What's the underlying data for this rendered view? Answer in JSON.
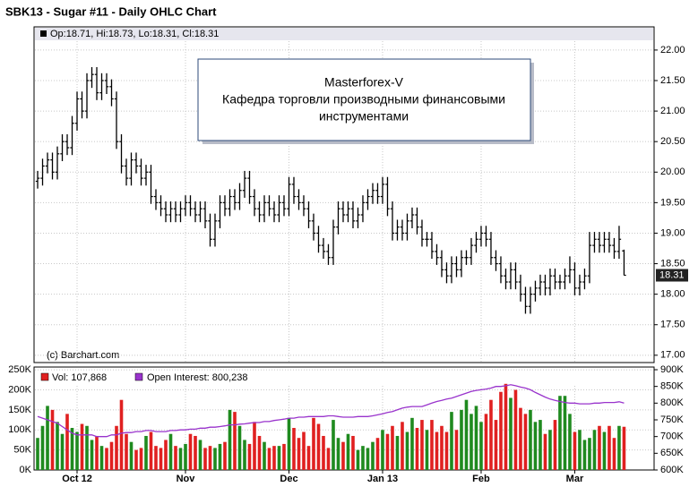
{
  "chart_data": [
    {
      "type": "ohlc",
      "title": "SBK13 - Sugar #11 - Daily OHLC Chart",
      "info": "Op:18.71, Hi:18.73, Lo:18.31, Cl:18.31",
      "annotation": [
        "Masterforex-V",
        "Кафедра торговли производными финансовыми",
        "инструментами"
      ],
      "source": "(c) Barchart.com",
      "color": "#000000",
      "grid": true,
      "xlim": [
        -0.73,
        125.1
      ],
      "ylim": [
        16.88,
        22.38
      ],
      "yticks": [
        {
          "value": 17,
          "label": "17.00"
        },
        {
          "value": 17.5,
          "label": "17.50"
        },
        {
          "value": 18,
          "label": "18.00"
        },
        {
          "value": 18.5,
          "label": "18.50"
        },
        {
          "value": 19,
          "label": "19.00"
        },
        {
          "value": 19.5,
          "label": "19.50"
        },
        {
          "value": 20,
          "label": "20.00"
        },
        {
          "value": 20.5,
          "label": "20.50"
        },
        {
          "value": 21,
          "label": "21.00"
        },
        {
          "value": 21.5,
          "label": "21.50"
        },
        {
          "value": 22,
          "label": "22.00"
        }
      ],
      "ohlc": [
        [
          19.85,
          20.02,
          19.73,
          19.9
        ],
        [
          19.9,
          20.22,
          19.78,
          20.1
        ],
        [
          20.1,
          20.32,
          19.98,
          20.2
        ],
        [
          20.2,
          20.32,
          19.88,
          20.0
        ],
        [
          20.0,
          20.42,
          19.88,
          20.3
        ],
        [
          20.3,
          20.62,
          20.18,
          20.5
        ],
        [
          20.5,
          20.62,
          20.28,
          20.4
        ],
        [
          20.4,
          20.92,
          20.28,
          20.8
        ],
        [
          20.8,
          21.32,
          20.68,
          21.2
        ],
        [
          21.2,
          21.32,
          20.88,
          21.0
        ],
        [
          21.0,
          21.62,
          20.88,
          21.5
        ],
        [
          21.5,
          21.72,
          21.38,
          21.6
        ],
        [
          21.6,
          21.72,
          21.18,
          21.3
        ],
        [
          21.3,
          21.62,
          21.18,
          21.5
        ],
        [
          21.5,
          21.62,
          21.28,
          21.4
        ],
        [
          21.4,
          21.52,
          21.08,
          21.2
        ],
        [
          21.2,
          21.32,
          20.38,
          20.5
        ],
        [
          20.5,
          20.62,
          19.98,
          20.1
        ],
        [
          20.1,
          20.22,
          19.78,
          19.9
        ],
        [
          19.9,
          20.32,
          19.78,
          20.2
        ],
        [
          20.2,
          20.32,
          19.98,
          20.1
        ],
        [
          20.1,
          20.22,
          19.78,
          19.9
        ],
        [
          19.9,
          20.12,
          19.78,
          20.0
        ],
        [
          20.0,
          20.12,
          19.48,
          19.6
        ],
        [
          19.6,
          19.72,
          19.38,
          19.5
        ],
        [
          19.5,
          19.62,
          19.28,
          19.4
        ],
        [
          19.4,
          19.52,
          19.18,
          19.3
        ],
        [
          19.3,
          19.52,
          19.18,
          19.4
        ],
        [
          19.4,
          19.52,
          19.18,
          19.3
        ],
        [
          19.3,
          19.52,
          19.18,
          19.4
        ],
        [
          19.4,
          19.62,
          19.28,
          19.5
        ],
        [
          19.5,
          19.62,
          19.28,
          19.4
        ],
        [
          19.4,
          19.52,
          19.18,
          19.3
        ],
        [
          19.3,
          19.52,
          19.18,
          19.4
        ],
        [
          19.4,
          19.52,
          19.08,
          19.2
        ],
        [
          19.2,
          19.32,
          18.78,
          18.9
        ],
        [
          18.9,
          19.32,
          18.78,
          19.2
        ],
        [
          19.2,
          19.62,
          19.08,
          19.5
        ],
        [
          19.5,
          19.62,
          19.28,
          19.4
        ],
        [
          19.4,
          19.72,
          19.28,
          19.6
        ],
        [
          19.6,
          19.72,
          19.38,
          19.5
        ],
        [
          19.5,
          19.82,
          19.38,
          19.7
        ],
        [
          19.7,
          20.02,
          19.58,
          19.9
        ],
        [
          19.9,
          20.02,
          19.48,
          19.6
        ],
        [
          19.6,
          19.72,
          19.28,
          19.4
        ],
        [
          19.4,
          19.52,
          19.18,
          19.3
        ],
        [
          19.3,
          19.62,
          19.18,
          19.5
        ],
        [
          19.5,
          19.62,
          19.28,
          19.4
        ],
        [
          19.4,
          19.52,
          19.18,
          19.3
        ],
        [
          19.3,
          19.62,
          19.18,
          19.5
        ],
        [
          19.5,
          19.62,
          19.28,
          19.4
        ],
        [
          19.4,
          19.92,
          19.28,
          19.8
        ],
        [
          19.8,
          19.92,
          19.48,
          19.6
        ],
        [
          19.6,
          19.72,
          19.38,
          19.5
        ],
        [
          19.5,
          19.62,
          19.28,
          19.4
        ],
        [
          19.4,
          19.52,
          19.08,
          19.2
        ],
        [
          19.2,
          19.32,
          18.88,
          19.0
        ],
        [
          19.0,
          19.12,
          18.68,
          18.8
        ],
        [
          18.8,
          18.92,
          18.58,
          18.7
        ],
        [
          18.7,
          18.82,
          18.48,
          18.6
        ],
        [
          18.6,
          19.22,
          18.48,
          19.1
        ],
        [
          19.1,
          19.52,
          18.98,
          19.4
        ],
        [
          19.4,
          19.52,
          19.18,
          19.3
        ],
        [
          19.3,
          19.52,
          19.18,
          19.4
        ],
        [
          19.4,
          19.52,
          19.08,
          19.2
        ],
        [
          19.2,
          19.42,
          19.08,
          19.3
        ],
        [
          19.3,
          19.62,
          19.18,
          19.5
        ],
        [
          19.5,
          19.72,
          19.38,
          19.6
        ],
        [
          19.6,
          19.82,
          19.48,
          19.7
        ],
        [
          19.7,
          19.82,
          19.48,
          19.6
        ],
        [
          19.6,
          19.92,
          19.48,
          19.8
        ],
        [
          19.8,
          19.92,
          19.28,
          19.4
        ],
        [
          19.4,
          19.52,
          18.88,
          19.0
        ],
        [
          19.0,
          19.22,
          18.88,
          19.1
        ],
        [
          19.1,
          19.22,
          18.88,
          19.0
        ],
        [
          19.0,
          19.32,
          18.88,
          19.2
        ],
        [
          19.2,
          19.42,
          19.08,
          19.3
        ],
        [
          19.3,
          19.42,
          18.98,
          19.1
        ],
        [
          19.1,
          19.22,
          18.78,
          18.9
        ],
        [
          18.9,
          19.02,
          18.78,
          18.9
        ],
        [
          18.9,
          19.02,
          18.58,
          18.7
        ],
        [
          18.7,
          18.82,
          18.48,
          18.6
        ],
        [
          18.6,
          18.72,
          18.28,
          18.4
        ],
        [
          18.4,
          18.52,
          18.18,
          18.3
        ],
        [
          18.3,
          18.62,
          18.18,
          18.5
        ],
        [
          18.5,
          18.62,
          18.28,
          18.4
        ],
        [
          18.4,
          18.72,
          18.28,
          18.6
        ],
        [
          18.6,
          18.72,
          18.48,
          18.6
        ],
        [
          18.6,
          18.92,
          18.48,
          18.8
        ],
        [
          18.8,
          19.02,
          18.68,
          18.9
        ],
        [
          18.9,
          19.12,
          18.78,
          19.0
        ],
        [
          19.0,
          19.12,
          18.78,
          18.9
        ],
        [
          18.9,
          19.02,
          18.48,
          18.6
        ],
        [
          18.6,
          18.72,
          18.38,
          18.5
        ],
        [
          18.5,
          18.62,
          18.18,
          18.3
        ],
        [
          18.3,
          18.42,
          18.08,
          18.2
        ],
        [
          18.2,
          18.52,
          18.08,
          18.4
        ],
        [
          18.4,
          18.52,
          18.08,
          18.2
        ],
        [
          18.2,
          18.32,
          17.88,
          18.0
        ],
        [
          18.0,
          18.12,
          17.68,
          17.8
        ],
        [
          17.8,
          18.12,
          17.68,
          18.0
        ],
        [
          18.0,
          18.22,
          17.88,
          18.1
        ],
        [
          18.1,
          18.32,
          17.98,
          18.2
        ],
        [
          18.2,
          18.32,
          17.98,
          18.1
        ],
        [
          18.1,
          18.42,
          17.98,
          18.3
        ],
        [
          18.3,
          18.42,
          18.08,
          18.2
        ],
        [
          18.2,
          18.32,
          18.08,
          18.2
        ],
        [
          18.2,
          18.42,
          18.08,
          18.3
        ],
        [
          18.3,
          18.62,
          18.18,
          18.4
        ],
        [
          18.4,
          18.52,
          17.98,
          18.1
        ],
        [
          18.1,
          18.32,
          17.98,
          18.2
        ],
        [
          18.2,
          18.42,
          18.08,
          18.3
        ],
        [
          18.3,
          19.02,
          18.18,
          18.8
        ],
        [
          18.8,
          19.02,
          18.68,
          18.9
        ],
        [
          18.9,
          19.02,
          18.68,
          18.8
        ],
        [
          18.8,
          19.02,
          18.68,
          18.9
        ],
        [
          18.9,
          19.02,
          18.68,
          18.8
        ],
        [
          18.8,
          18.92,
          18.58,
          18.7
        ],
        [
          18.7,
          19.12,
          18.58,
          18.9
        ],
        [
          18.71,
          18.73,
          18.31,
          18.31
        ]
      ]
    },
    {
      "type": "volume",
      "up_color": "#1f8a1f",
      "down_color": "#e02020",
      "grid": true,
      "xlim": [
        -0.73,
        125.1
      ],
      "ylim": [
        0,
        257000
      ],
      "y2lim": [
        600000,
        908000
      ],
      "xticks": [
        {
          "value": 8,
          "label": "Oct 12"
        },
        {
          "value": 30,
          "label": "Nov"
        },
        {
          "value": 51,
          "label": "Dec"
        },
        {
          "value": 70,
          "label": "Jan 13"
        },
        {
          "value": 90,
          "label": "Feb"
        },
        {
          "value": 109,
          "label": "Mar"
        }
      ],
      "yticks": [
        {
          "value": 0,
          "label": "0K"
        },
        {
          "value": 50000,
          "label": "50K"
        },
        {
          "value": 100000,
          "label": "100K"
        },
        {
          "value": 150000,
          "label": "150K"
        },
        {
          "value": 200000,
          "label": "200K"
        },
        {
          "value": 250000,
          "label": "250K"
        }
      ],
      "y2ticks": [
        {
          "value": 600000,
          "label": "600K"
        },
        {
          "value": 650000,
          "label": "650K"
        },
        {
          "value": 700000,
          "label": "700K"
        },
        {
          "value": 750000,
          "label": "750K"
        },
        {
          "value": 800000,
          "label": "800K"
        },
        {
          "value": 850000,
          "label": "850K"
        },
        {
          "value": 900000,
          "label": "900K"
        }
      ],
      "series": [
        {
          "name": "Vol: 107,868",
          "color": "#e02020",
          "values": [
            80000,
            110000,
            160000,
            150000,
            120000,
            90000,
            140000,
            105000,
            95000,
            115000,
            110000,
            75000,
            85000,
            60000,
            55000,
            70000,
            110000,
            175000,
            90000,
            70000,
            50000,
            55000,
            85000,
            95000,
            60000,
            55000,
            75000,
            90000,
            60000,
            55000,
            65000,
            90000,
            85000,
            75000,
            55000,
            60000,
            55000,
            65000,
            70000,
            150000,
            145000,
            110000,
            75000,
            65000,
            120000,
            85000,
            70000,
            55000,
            60000,
            60000,
            65000,
            130000,
            105000,
            80000,
            95000,
            60000,
            130000,
            115000,
            85000,
            55000,
            125000,
            80000,
            70000,
            90000,
            85000,
            50000,
            60000,
            55000,
            70000,
            80000,
            100000,
            90000,
            110000,
            85000,
            120000,
            95000,
            130000,
            105000,
            125000,
            100000,
            125000,
            95000,
            110000,
            95000,
            145000,
            100000,
            150000,
            175000,
            140000,
            160000,
            120000,
            140000,
            175000,
            125000,
            195000,
            215000,
            180000,
            200000,
            155000,
            140000,
            150000,
            120000,
            125000,
            90000,
            100000,
            125000,
            185000,
            185000,
            140000,
            95000,
            100000,
            75000,
            80000,
            100000,
            110000,
            95000,
            110000,
            80000,
            110000,
            107868
          ]
        },
        {
          "name": "Open Interest: 800,238",
          "color": "#9933cc",
          "axis": "y2",
          "values": [
            760000,
            755000,
            750000,
            745000,
            740000,
            730000,
            720000,
            710000,
            705000,
            705000,
            705000,
            705000,
            700000,
            700000,
            700000,
            705000,
            705000,
            710000,
            712000,
            712000,
            715000,
            715000,
            718000,
            718000,
            715000,
            715000,
            715000,
            718000,
            718000,
            720000,
            720000,
            722000,
            722000,
            725000,
            725000,
            728000,
            728000,
            730000,
            732000,
            735000,
            735000,
            737000,
            738000,
            740000,
            742000,
            742000,
            745000,
            745000,
            748000,
            750000,
            752000,
            755000,
            755000,
            758000,
            758000,
            760000,
            760000,
            760000,
            760000,
            762000,
            762000,
            760000,
            758000,
            758000,
            758000,
            760000,
            760000,
            760000,
            762000,
            765000,
            768000,
            772000,
            775000,
            780000,
            785000,
            788000,
            790000,
            790000,
            790000,
            795000,
            800000,
            805000,
            808000,
            812000,
            815000,
            820000,
            825000,
            830000,
            835000,
            838000,
            840000,
            842000,
            845000,
            850000,
            850000,
            852000,
            855000,
            852000,
            848000,
            845000,
            840000,
            832000,
            825000,
            818000,
            812000,
            808000,
            805000,
            802000,
            800000,
            800000,
            798000,
            798000,
            798000,
            800000,
            800000,
            802000,
            802000,
            802000,
            804000,
            800238
          ]
        }
      ]
    }
  ]
}
